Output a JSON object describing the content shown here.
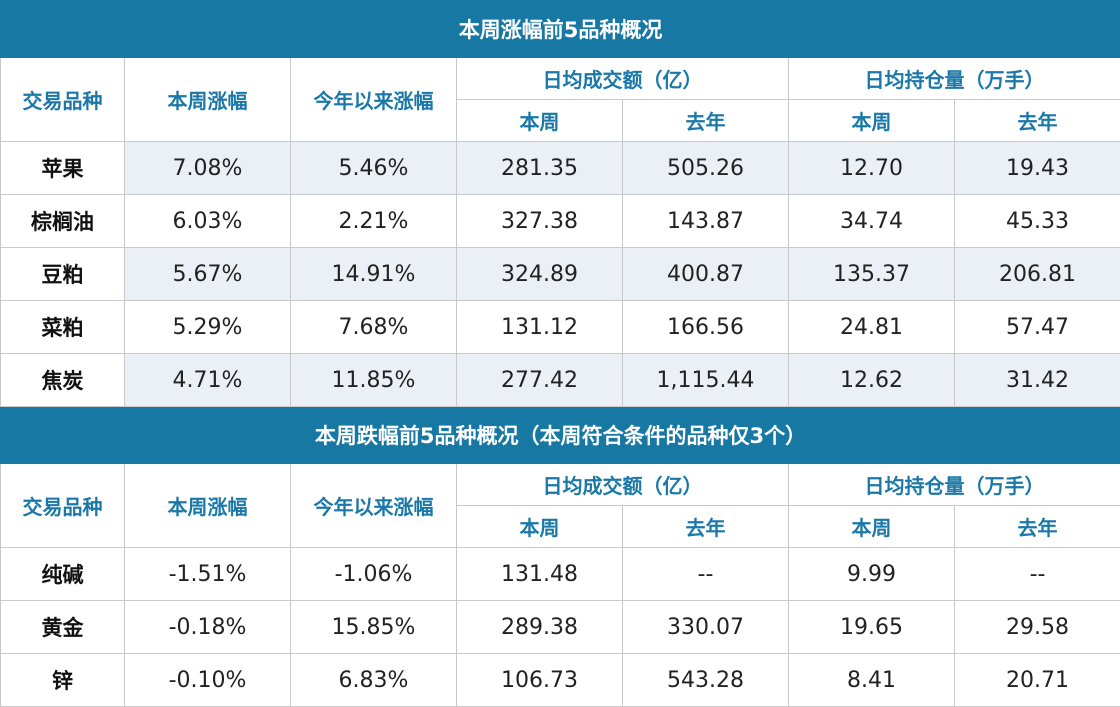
{
  "headers": {
    "variety": "交易品种",
    "weekly_change": "本周涨幅",
    "ytd_change": "今年以来涨幅",
    "avg_volume": "日均成交额（亿）",
    "avg_oi": "日均持仓量（万手）",
    "this_week": "本周",
    "last_year": "去年"
  },
  "top": {
    "title": "本周涨幅前5品种概况",
    "rows": [
      [
        "苹果",
        "7.08%",
        "5.46%",
        "281.35",
        "505.26",
        "12.70",
        "19.43"
      ],
      [
        "棕榈油",
        "6.03%",
        "2.21%",
        "327.38",
        "143.87",
        "34.74",
        "45.33"
      ],
      [
        "豆粕",
        "5.67%",
        "14.91%",
        "324.89",
        "400.87",
        "135.37",
        "206.81"
      ],
      [
        "菜粕",
        "5.29%",
        "7.68%",
        "131.12",
        "166.56",
        "24.81",
        "57.47"
      ],
      [
        "焦炭",
        "4.71%",
        "11.85%",
        "277.42",
        "1,115.44",
        "12.62",
        "31.42"
      ]
    ]
  },
  "bottom": {
    "title": "本周跌幅前5品种概况（本周符合条件的品种仅3个）",
    "rows": [
      [
        "纯碱",
        "-1.51%",
        "-1.06%",
        "131.48",
        "--",
        "9.99",
        "--"
      ],
      [
        "黄金",
        "-0.18%",
        "15.85%",
        "289.38",
        "330.07",
        "19.65",
        "29.58"
      ],
      [
        "锌",
        "-0.10%",
        "6.83%",
        "106.73",
        "543.28",
        "8.41",
        "20.71"
      ]
    ]
  }
}
